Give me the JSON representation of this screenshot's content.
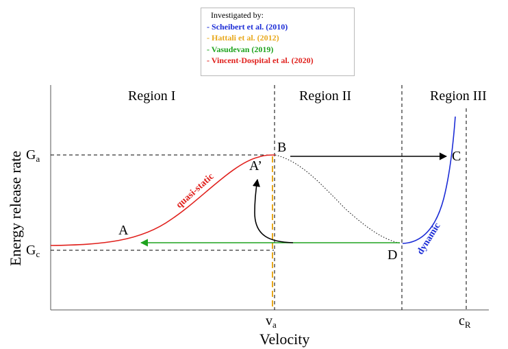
{
  "legend": {
    "title": "Investigated by:",
    "items": [
      {
        "text": "- Scheibert et al. (2010)",
        "color": "#1a2bd6"
      },
      {
        "text": "- Hattali et al. (2012)",
        "color": "#e8a81c"
      },
      {
        "text": "- Vasudevan (2019)",
        "color": "#1ea31e"
      },
      {
        "text": "- Vincent-Dospital et al. (2020)",
        "color": "#e0201c"
      }
    ]
  },
  "regions": {
    "r1": "Region  I",
    "r2": "Region  II",
    "r3": "Region  III"
  },
  "axes": {
    "xlabel": "Velocity",
    "ylabel": "Energy  release  rate",
    "y_ticks": {
      "ga_main": "G",
      "ga_sub": "a",
      "gc_main": "G",
      "gc_sub": "c"
    },
    "x_ticks": {
      "va_main": "v",
      "va_sub": "a",
      "cr_main": "c",
      "cr_sub": "R"
    }
  },
  "points": {
    "A": "A",
    "A_prime": "A’",
    "B": "B",
    "C": "C",
    "D": "D"
  },
  "curve_labels": {
    "quasi": "quasi-static",
    "dynamic": "dynamic"
  },
  "colors": {
    "red": "#e0201c",
    "blue": "#1a2bd6",
    "green": "#1ea31e",
    "orange": "#e8a81c",
    "black": "#000000"
  }
}
